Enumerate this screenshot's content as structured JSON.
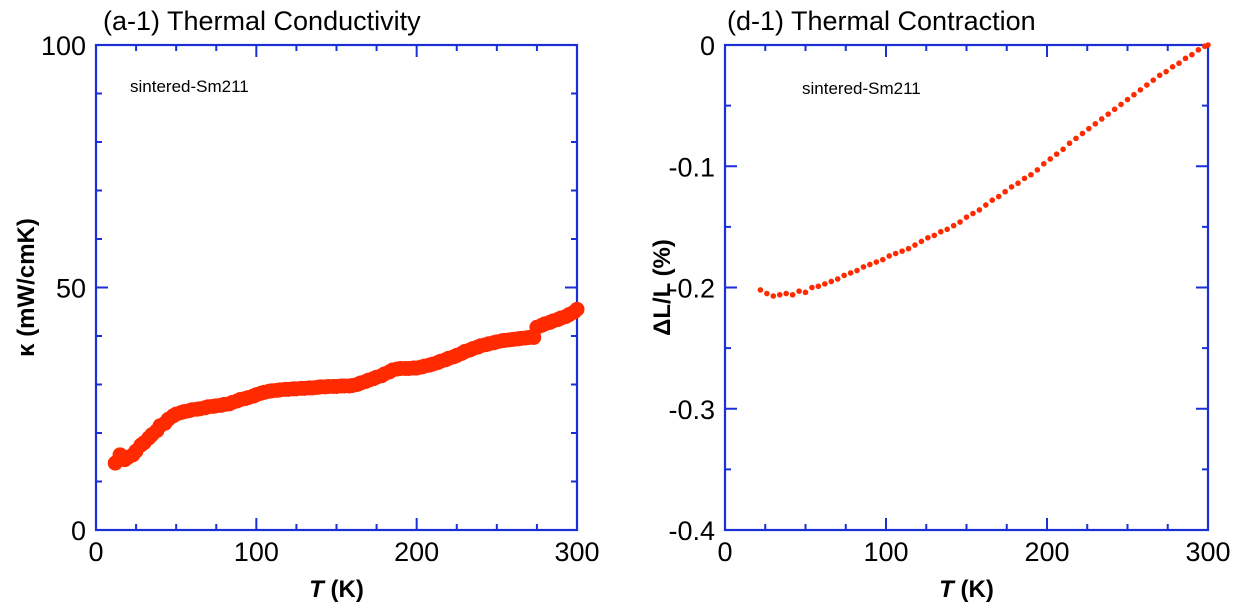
{
  "chart_data": [
    {
      "type": "scatter",
      "title": "(a-1) Thermal Conductivity",
      "annotation": "sintered-Sm211",
      "xlabel_italic": "T",
      "xlabel_rest": " (K)",
      "ylabel": "κ (mW/cmK)",
      "xlim": [
        0,
        300
      ],
      "ylim": [
        0,
        100
      ],
      "xticks": [
        0,
        100,
        200,
        300
      ],
      "xtick_labels": [
        "0",
        "100",
        "200",
        "300"
      ],
      "yticks": [
        0,
        50,
        100
      ],
      "ytick_labels": [
        "0",
        "50",
        "100"
      ],
      "x_minor_step": 25,
      "y_minor_step": 10,
      "marker_color": "#ff2a00",
      "marker_size": "large",
      "series": [
        {
          "x": [
            12,
            15,
            18,
            20,
            23,
            25,
            28,
            30,
            33,
            35,
            38,
            40,
            43,
            45,
            48,
            50,
            53,
            55,
            58,
            60,
            63,
            65,
            68,
            70,
            73,
            75,
            78,
            80,
            83,
            85,
            88,
            90,
            93,
            95,
            98,
            100,
            103,
            105,
            108,
            110,
            113,
            115,
            118,
            120,
            123,
            125,
            128,
            130,
            133,
            135,
            138,
            140,
            143,
            145,
            148,
            150,
            153,
            155,
            158,
            160,
            163,
            165,
            168,
            170,
            173,
            175,
            178,
            180,
            183,
            185,
            188,
            190,
            193,
            195,
            198,
            200,
            203,
            205,
            208,
            210,
            213,
            215,
            218,
            220,
            223,
            225,
            228,
            230,
            233,
            235,
            238,
            240,
            243,
            245,
            248,
            250,
            253,
            255,
            258,
            260,
            263,
            265,
            268,
            270,
            273,
            275,
            278,
            280,
            283,
            285,
            288,
            290,
            293,
            295,
            298,
            300
          ],
          "y": [
            13.8,
            15.5,
            14.5,
            15.0,
            15.5,
            16.3,
            17.5,
            18.0,
            19.0,
            19.7,
            20.5,
            21.5,
            22.0,
            22.8,
            23.5,
            23.9,
            24.2,
            24.4,
            24.6,
            24.8,
            24.9,
            25.0,
            25.2,
            25.4,
            25.5,
            25.6,
            25.7,
            25.9,
            26.0,
            26.3,
            26.6,
            26.9,
            27.1,
            27.3,
            27.6,
            27.9,
            28.2,
            28.4,
            28.6,
            28.7,
            28.8,
            28.9,
            29.0,
            29.0,
            29.1,
            29.1,
            29.2,
            29.2,
            29.3,
            29.3,
            29.4,
            29.5,
            29.5,
            29.6,
            29.6,
            29.6,
            29.7,
            29.7,
            29.7,
            29.8,
            30.0,
            30.3,
            30.6,
            30.9,
            31.2,
            31.5,
            31.8,
            32.2,
            32.6,
            33.0,
            33.2,
            33.3,
            33.3,
            33.3,
            33.4,
            33.4,
            33.6,
            33.8,
            34.0,
            34.2,
            34.5,
            34.8,
            35.1,
            35.4,
            35.7,
            36.0,
            36.4,
            36.8,
            37.1,
            37.4,
            37.7,
            38.0,
            38.2,
            38.4,
            38.6,
            38.8,
            39.0,
            39.1,
            39.2,
            39.3,
            39.4,
            39.5,
            39.6,
            39.7,
            39.7,
            41.8,
            42.2,
            42.5,
            42.8,
            43.1,
            43.4,
            43.7,
            44.0,
            44.4,
            44.9,
            45.5
          ]
        }
      ]
    },
    {
      "type": "scatter",
      "title": "(d-1) Thermal Contraction",
      "annotation": "sintered-Sm211",
      "xlabel_italic": "T",
      "xlabel_rest": " (K)",
      "ylabel": "ΔL/L (%)",
      "xlim": [
        0,
        300
      ],
      "ylim": [
        -0.4,
        0
      ],
      "xticks": [
        0,
        100,
        200,
        300
      ],
      "xtick_labels": [
        "0",
        "100",
        "200",
        "300"
      ],
      "yticks": [
        -0.4,
        -0.3,
        -0.2,
        -0.1,
        0
      ],
      "ytick_labels": [
        "-0.4",
        "-0.3",
        "-0.2",
        "-0.1",
        "0"
      ],
      "x_minor_step": 25,
      "y_minor_step": 0.05,
      "marker_color": "#ff2a00",
      "marker_size": "small",
      "series": [
        {
          "x": [
            22,
            26,
            30,
            34,
            38,
            42,
            46,
            50,
            54,
            58,
            62,
            66,
            70,
            74,
            78,
            82,
            86,
            90,
            94,
            98,
            102,
            106,
            110,
            114,
            118,
            122,
            126,
            130,
            134,
            138,
            142,
            146,
            150,
            154,
            158,
            162,
            166,
            170,
            174,
            178,
            182,
            186,
            190,
            194,
            198,
            202,
            206,
            210,
            214,
            218,
            222,
            226,
            230,
            234,
            238,
            242,
            246,
            250,
            254,
            258,
            262,
            266,
            270,
            274,
            278,
            282,
            286,
            290,
            294,
            298,
            300
          ],
          "y": [
            -0.202,
            -0.205,
            -0.207,
            -0.206,
            -0.205,
            -0.206,
            -0.203,
            -0.204,
            -0.2,
            -0.199,
            -0.197,
            -0.195,
            -0.193,
            -0.19,
            -0.188,
            -0.186,
            -0.183,
            -0.181,
            -0.179,
            -0.177,
            -0.174,
            -0.172,
            -0.17,
            -0.168,
            -0.165,
            -0.162,
            -0.159,
            -0.157,
            -0.154,
            -0.152,
            -0.149,
            -0.146,
            -0.142,
            -0.139,
            -0.136,
            -0.132,
            -0.128,
            -0.125,
            -0.121,
            -0.117,
            -0.114,
            -0.11,
            -0.107,
            -0.103,
            -0.098,
            -0.094,
            -0.09,
            -0.086,
            -0.081,
            -0.077,
            -0.073,
            -0.069,
            -0.065,
            -0.061,
            -0.057,
            -0.053,
            -0.049,
            -0.045,
            -0.041,
            -0.037,
            -0.033,
            -0.029,
            -0.025,
            -0.022,
            -0.018,
            -0.015,
            -0.011,
            -0.008,
            -0.004,
            -0.001,
            0.0
          ]
        }
      ]
    }
  ]
}
